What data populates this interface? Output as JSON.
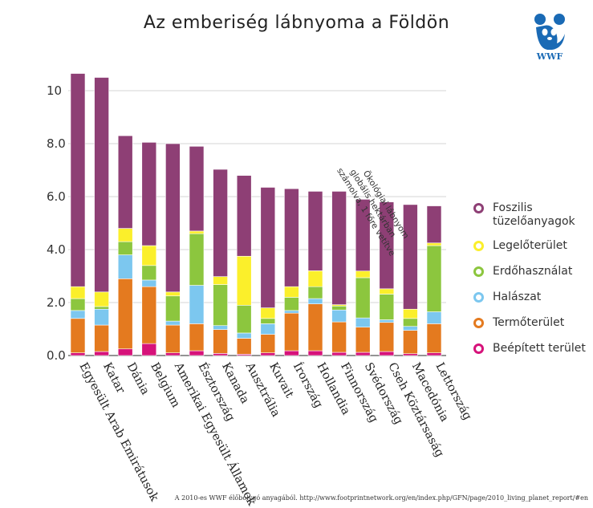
{
  "chart_data": {
    "type": "bar",
    "stacked": true,
    "title": "Az emberiség lábnyoma a Földön",
    "ylabel": "Ökológiai lábnyom globális hektárban számolva, 1 főre vetítve",
    "ylim": [
      0,
      10.8
    ],
    "yticks": [
      "0.0",
      "2.0",
      "4.0",
      "6.0",
      "8.0",
      "10"
    ],
    "ytick_values": [
      0,
      2,
      4,
      6,
      8,
      10
    ],
    "grid": true,
    "legend_position": "right",
    "categories": [
      "Egyesült Arab Emirátusok",
      "Katar",
      "Dánia",
      "Belgium",
      "Amerikai Egyesült Államok",
      "Észtország",
      "Kanada",
      "Ausztrália",
      "Kuvait",
      "Írország",
      "Hollandia",
      "Finnország",
      "Svédország",
      "Cseh Köztársaság",
      "Macedónia",
      "Lettország"
    ],
    "series": [
      {
        "name": "Beépített terület",
        "color": "#d6127a",
        "values": [
          0.1,
          0.15,
          0.25,
          0.45,
          0.1,
          0.18,
          0.08,
          0.05,
          0.1,
          0.18,
          0.18,
          0.12,
          0.12,
          0.15,
          0.07,
          0.1
        ]
      },
      {
        "name": "Termőterület",
        "color": "#e47a1f",
        "values": [
          1.3,
          1.0,
          2.65,
          2.15,
          1.05,
          1.02,
          0.9,
          0.6,
          0.7,
          1.42,
          1.77,
          1.15,
          0.95,
          1.1,
          0.88,
          1.1
        ]
      },
      {
        "name": "Halászat",
        "color": "#7cc7ef",
        "values": [
          0.3,
          0.6,
          0.9,
          0.25,
          0.15,
          1.45,
          0.15,
          0.2,
          0.4,
          0.1,
          0.2,
          0.45,
          0.35,
          0.1,
          0.15,
          0.45
        ]
      },
      {
        "name": "Erdőhasználat",
        "color": "#8cc63e",
        "values": [
          0.45,
          0.1,
          0.5,
          0.55,
          0.95,
          1.95,
          1.55,
          1.05,
          0.2,
          0.5,
          0.45,
          0.15,
          1.52,
          0.97,
          0.3,
          2.5
        ]
      },
      {
        "name": "Legelőterület",
        "color": "#fbef2b",
        "values": [
          0.45,
          0.55,
          0.5,
          0.75,
          0.15,
          0.1,
          0.3,
          1.85,
          0.4,
          0.4,
          0.6,
          0.05,
          0.25,
          0.2,
          0.35,
          0.1
        ]
      },
      {
        "name": "Foszilis tüzelőanyagok",
        "color": "#8e3f75",
        "values": [
          8.05,
          8.1,
          3.5,
          3.9,
          5.6,
          3.2,
          4.05,
          3.05,
          4.55,
          3.7,
          3.0,
          4.28,
          2.71,
          3.28,
          3.95,
          1.4
        ]
      }
    ],
    "legend": [
      {
        "label": "Foszilis tüzelőanyagok",
        "color": "#8e3f75"
      },
      {
        "label": "Legelőterület",
        "color": "#fbef2b"
      },
      {
        "label": "Erdőhasználat",
        "color": "#8cc63e"
      },
      {
        "label": "Halászat",
        "color": "#7cc7ef"
      },
      {
        "label": "Termőterület",
        "color": "#e47a1f"
      },
      {
        "label": "Beépített terület",
        "color": "#d6127a"
      }
    ]
  },
  "logo": {
    "text": "WWF",
    "icon": "panda-icon",
    "color": "#1a6ab5"
  },
  "source": "A 2010-es WWF élőbolygó anyagából. http://www.footprintnetwork.org/en/index.php/GFN/page/2010_living_planet_report/#en"
}
